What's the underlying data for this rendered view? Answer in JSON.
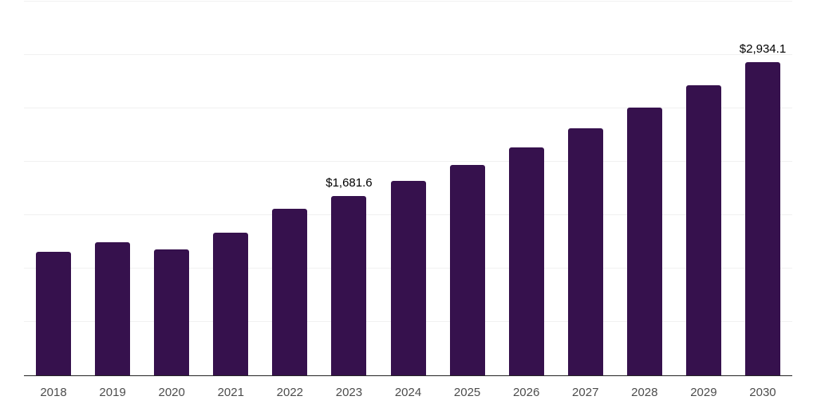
{
  "chart_data": {
    "type": "bar",
    "title": "",
    "xlabel": "",
    "ylabel": "",
    "categories": [
      "2018",
      "2019",
      "2020",
      "2021",
      "2022",
      "2023",
      "2024",
      "2025",
      "2026",
      "2027",
      "2028",
      "2029",
      "2030"
    ],
    "values": [
      1158.3,
      1243.7,
      1176.4,
      1337.8,
      1557.6,
      1681.6,
      1821.3,
      1972.5,
      2136.3,
      2313.4,
      2505.3,
      2713.2,
      2934.1
    ],
    "data_labels": [
      "",
      "",
      "",
      "",
      "",
      "$1,681.6",
      "",
      "",
      "",
      "",
      "",
      "",
      "$2,934.1"
    ],
    "ylim": [
      0,
      3500
    ],
    "gridline_step": 500,
    "grid": "on",
    "legend": "none",
    "colors": {
      "bar": "#36114d",
      "gridline": "#f1f1f1",
      "axis_line": "#262626",
      "tick_label": "#4d4d4d",
      "data_label": "#000000",
      "background": "#ffffff"
    }
  }
}
